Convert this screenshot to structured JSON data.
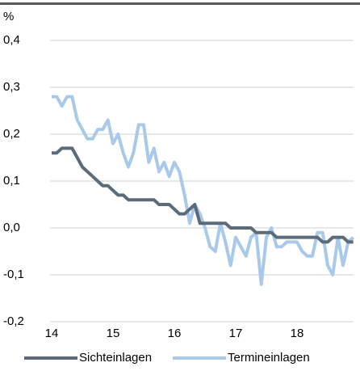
{
  "chart_data": {
    "type": "line",
    "y_label": "%",
    "x": [
      14,
      14.0833,
      14.1667,
      14.25,
      14.3333,
      14.4167,
      14.5,
      14.5833,
      14.6667,
      14.75,
      14.8333,
      14.9167,
      15,
      15.0833,
      15.1667,
      15.25,
      15.3333,
      15.4167,
      15.5,
      15.5833,
      15.6667,
      15.75,
      15.8333,
      15.9167,
      16,
      16.0833,
      16.1667,
      16.25,
      16.3333,
      16.4167,
      16.5,
      16.5833,
      16.6667,
      16.75,
      16.8333,
      16.9167,
      17,
      17.0833,
      17.1667,
      17.25,
      17.3333,
      17.4167,
      17.5,
      17.5833,
      17.6667,
      17.75,
      17.8333,
      17.9167,
      18,
      18.0833,
      18.1667,
      18.25,
      18.3333,
      18.4167,
      18.5,
      18.5833,
      18.6667,
      18.75,
      18.8333,
      18.9167
    ],
    "series": [
      {
        "name": "Sichteinlagen",
        "color": "#5b6b7a",
        "values": [
          0.16,
          0.16,
          0.17,
          0.17,
          0.17,
          0.15,
          0.13,
          0.12,
          0.11,
          0.1,
          0.09,
          0.09,
          0.08,
          0.07,
          0.07,
          0.06,
          0.06,
          0.06,
          0.06,
          0.06,
          0.06,
          0.05,
          0.05,
          0.05,
          0.04,
          0.03,
          0.03,
          0.04,
          0.05,
          0.01,
          0.01,
          0.01,
          0.01,
          0.01,
          0.01,
          0.0,
          0.0,
          0.0,
          0.0,
          0.0,
          -0.01,
          -0.01,
          -0.01,
          -0.01,
          -0.02,
          -0.02,
          -0.02,
          -0.02,
          -0.02,
          -0.02,
          -0.02,
          -0.02,
          -0.02,
          -0.03,
          -0.03,
          -0.02,
          -0.02,
          -0.02,
          -0.03,
          -0.03
        ]
      },
      {
        "name": "Termineinlagen",
        "color": "#a9c9ea",
        "values": [
          0.28,
          0.28,
          0.26,
          0.28,
          0.28,
          0.23,
          0.21,
          0.19,
          0.19,
          0.21,
          0.21,
          0.23,
          0.18,
          0.2,
          0.16,
          0.13,
          0.16,
          0.22,
          0.22,
          0.14,
          0.17,
          0.12,
          0.14,
          0.11,
          0.14,
          0.12,
          0.07,
          0.01,
          0.05,
          0.03,
          0.0,
          -0.04,
          -0.05,
          0.01,
          -0.03,
          -0.08,
          -0.02,
          -0.04,
          -0.06,
          -0.02,
          -0.01,
          -0.12,
          -0.02,
          0.0,
          -0.04,
          -0.04,
          -0.03,
          -0.03,
          -0.03,
          -0.05,
          -0.06,
          -0.06,
          -0.01,
          -0.01,
          -0.08,
          -0.1,
          -0.02,
          -0.08,
          -0.03,
          -0.02
        ]
      }
    ],
    "xlim": [
      14,
      19
    ],
    "xticks": [
      14,
      15,
      16,
      17,
      18
    ],
    "ylim": [
      -0.2,
      0.4
    ],
    "yticks": [
      {
        "value": -0.2,
        "label": "-0,2"
      },
      {
        "value": -0.1,
        "label": "-0,1"
      },
      {
        "value": 0,
        "label": "0,0"
      },
      {
        "value": 0.1,
        "label": "0,1"
      },
      {
        "value": 0.2,
        "label": "0,2"
      },
      {
        "value": 0.3,
        "label": "0,3"
      },
      {
        "value": 0.4,
        "label": "0,4"
      }
    ],
    "grid": true,
    "legend": "bottom"
  }
}
